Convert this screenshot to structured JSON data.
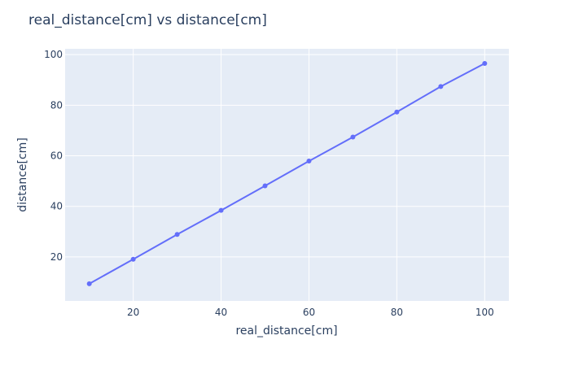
{
  "chart_data": {
    "type": "line",
    "title": "real_distance[cm] vs distance[cm]",
    "xlabel": "real_distance[cm]",
    "ylabel": "distance[cm]",
    "x": [
      10,
      20,
      30,
      40,
      50,
      60,
      70,
      80,
      90,
      100
    ],
    "series": [
      {
        "values": [
          9.4,
          19.1,
          28.9,
          38.4,
          48.1,
          57.9,
          67.4,
          77.3,
          87.4,
          96.5
        ]
      }
    ],
    "xlim": [
      4.5,
      105.5
    ],
    "ylim": [
      2.6,
      102.3
    ],
    "xticks": [
      "20",
      "40",
      "60",
      "80",
      "100"
    ],
    "yticks": [
      "20",
      "40",
      "60",
      "80",
      "100"
    ],
    "markers": true,
    "grid": true,
    "colors": {
      "series": "#636efa",
      "plot_background": "#e5ecf6",
      "grid": "#ffffff",
      "text": "#2a3f5f"
    }
  }
}
